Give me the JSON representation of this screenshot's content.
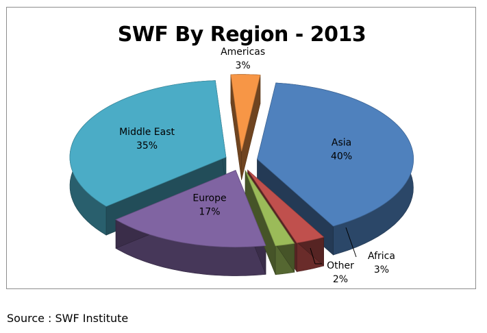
{
  "source": "Source : SWF Institute",
  "chart_data": {
    "type": "pie",
    "title": "SWF By Region - 2013",
    "style": "3d-exploded",
    "slices": [
      {
        "label": "Asia",
        "value": 40,
        "value_label": "40%",
        "color": "#4f81bd"
      },
      {
        "label": "Africa",
        "value": 3,
        "value_label": "3%",
        "color": "#c0504d"
      },
      {
        "label": "Other",
        "value": 2,
        "value_label": "2%",
        "color": "#9bbb59"
      },
      {
        "label": "Europe",
        "value": 17,
        "value_label": "17%",
        "color": "#8064a2"
      },
      {
        "label": "Middle East",
        "value": 35,
        "value_label": "35%",
        "color": "#4bacc6"
      },
      {
        "label": "Americas",
        "value": 3,
        "value_label": "3%",
        "color": "#f79646"
      }
    ]
  }
}
